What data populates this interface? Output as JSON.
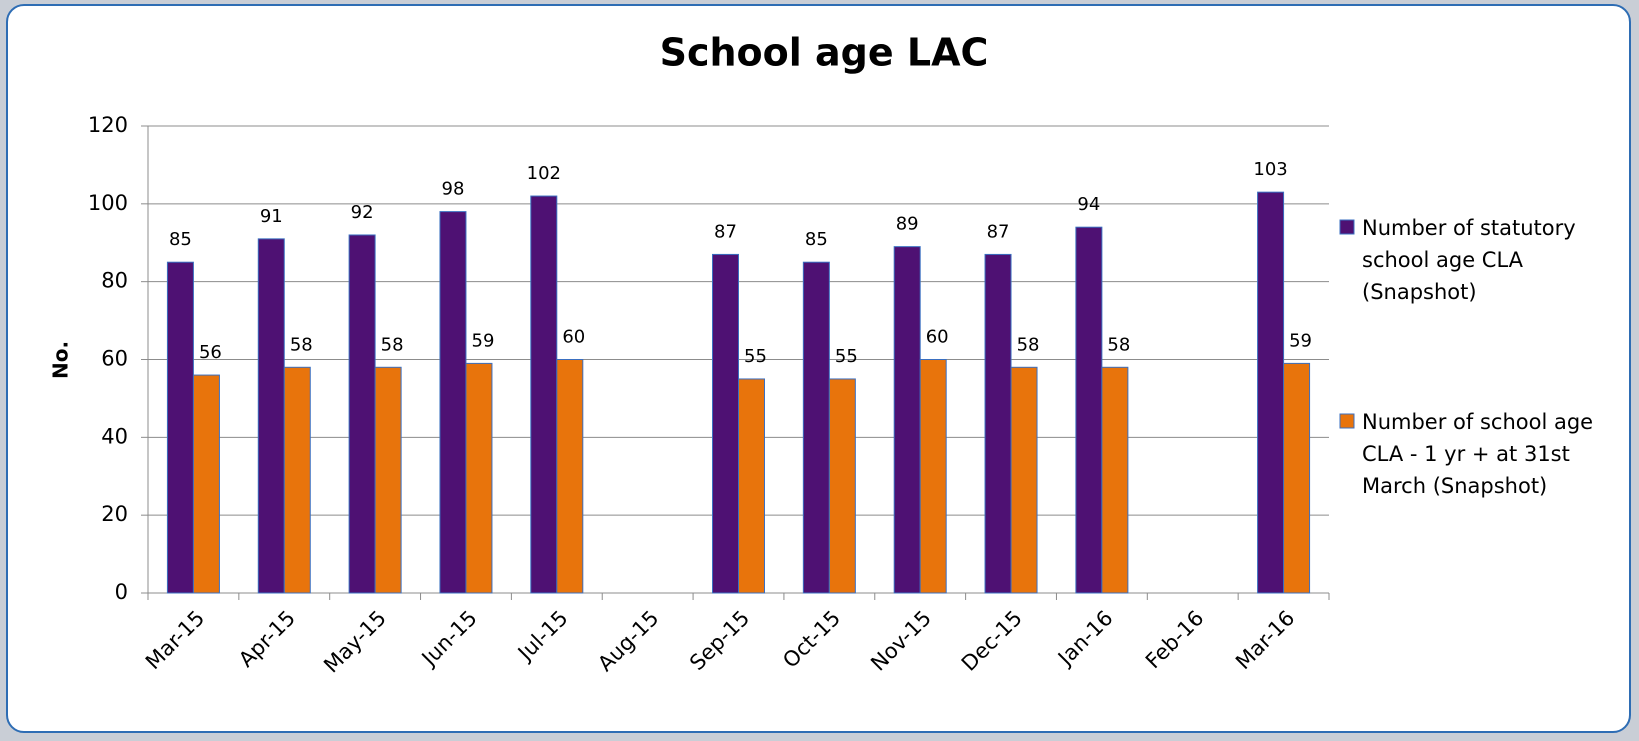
{
  "chart_data": {
    "type": "bar",
    "title": "School age LAC",
    "y_label": "No.",
    "categories": [
      "Mar-15",
      "Apr-15",
      "May-15",
      "Jun-15",
      "Jul-15",
      "Aug-15",
      "Sep-15",
      "Oct-15",
      "Nov-15",
      "Dec-15",
      "Jan-16",
      "Feb-16",
      "Mar-16"
    ],
    "series": [
      {
        "name": "Number of  statutory school age CLA (Snapshot)",
        "color": "#4e1173",
        "values": [
          85,
          91,
          92,
          98,
          102,
          null,
          87,
          85,
          89,
          87,
          94,
          null,
          103
        ]
      },
      {
        "name": "Number of school age CLA - 1 yr + at 31st March (Snapshot)",
        "color": "#e8740c",
        "values": [
          56,
          58,
          58,
          59,
          60,
          null,
          55,
          55,
          60,
          58,
          58,
          null,
          59
        ]
      }
    ],
    "ylim": [
      0,
      120
    ],
    "yticks": [
      0,
      20,
      40,
      60,
      80,
      100,
      120
    ],
    "grid": true,
    "legend": "right"
  }
}
